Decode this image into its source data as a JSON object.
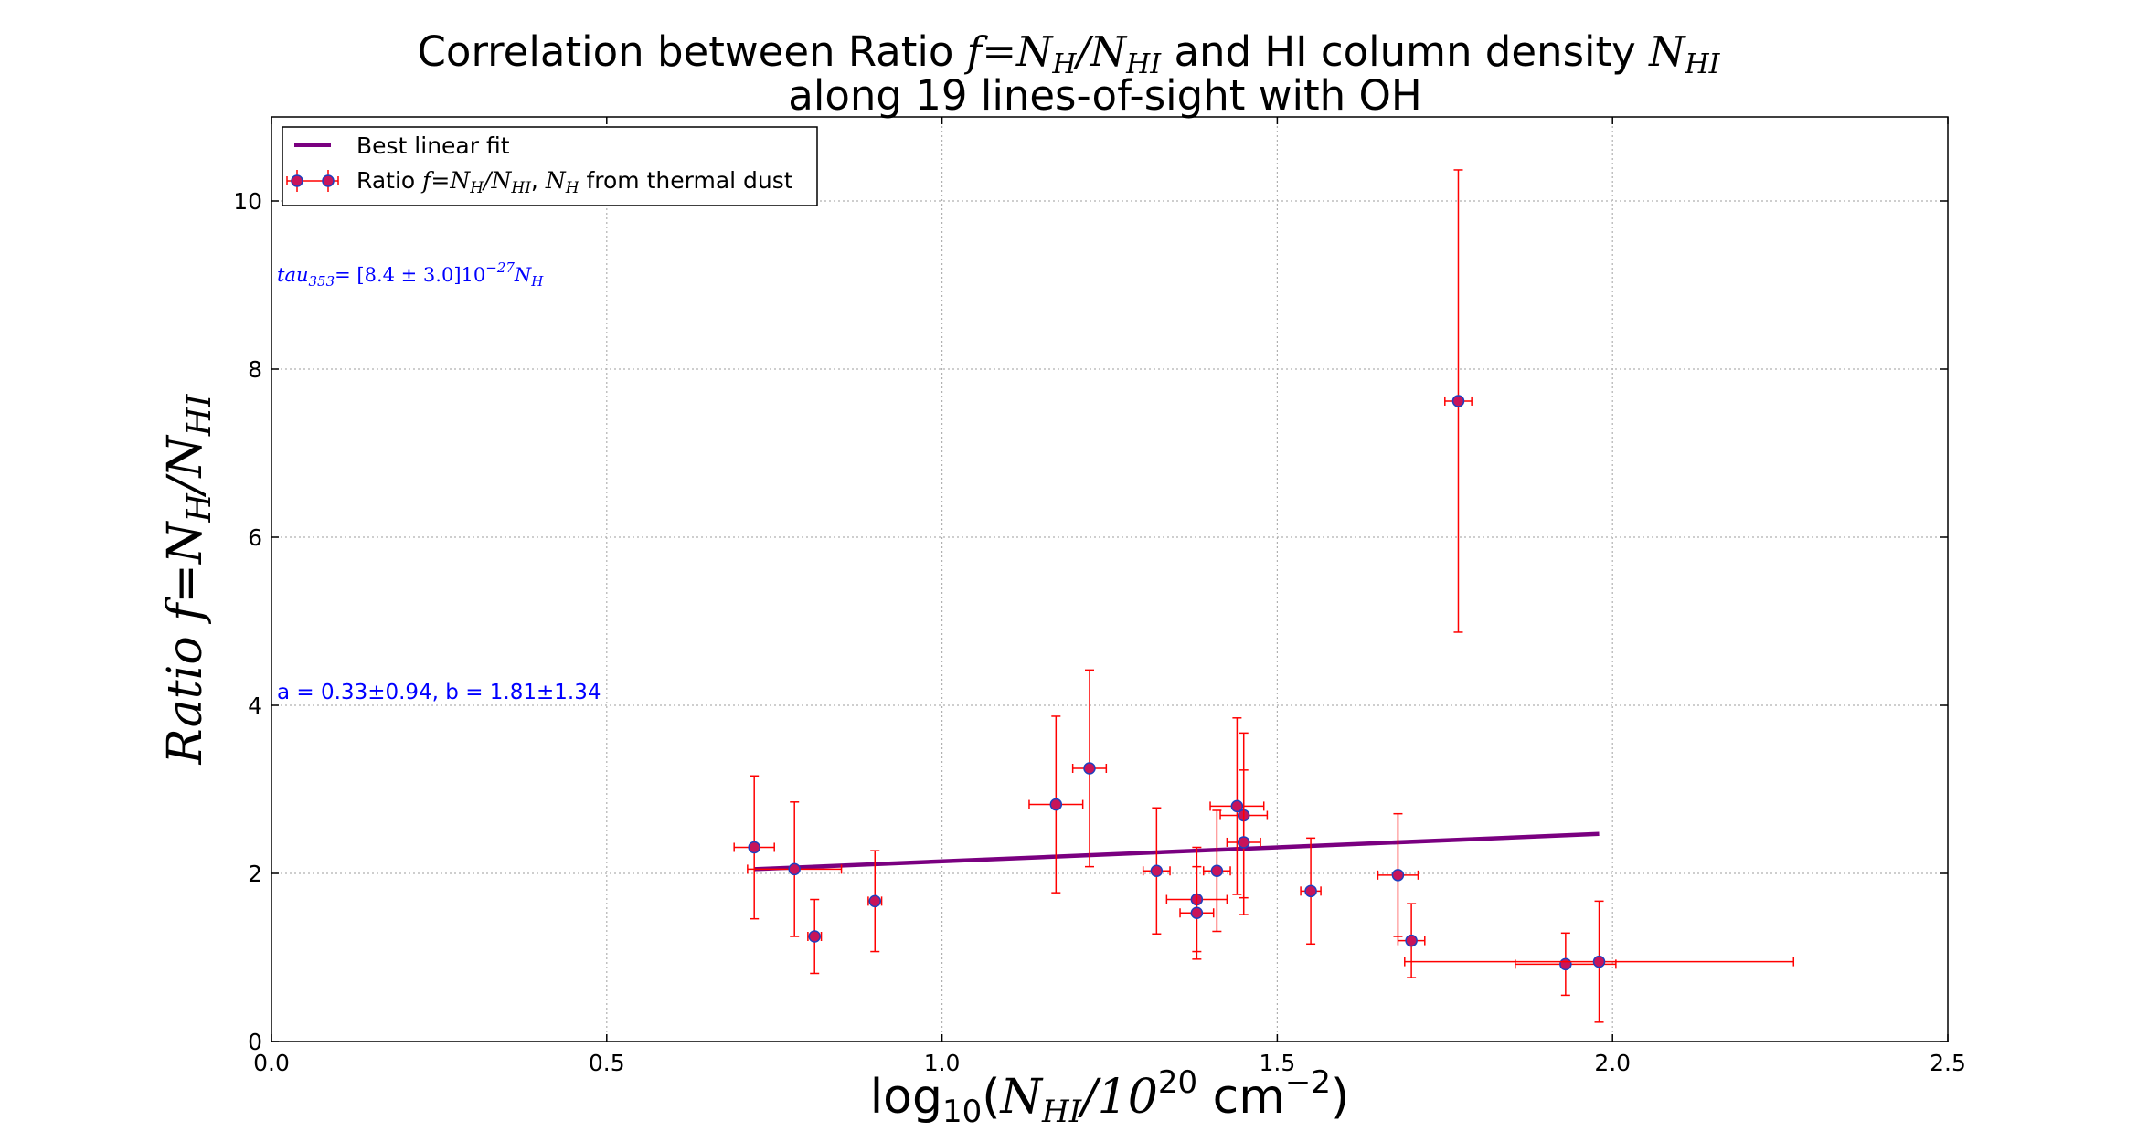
{
  "chart_data": {
    "type": "scatter",
    "title": {
      "line1_prefix": "Correlation between Ratio ",
      "line1_math": "f = NH/NHI",
      "line1_middle": " and HI column density ",
      "line1_math2": "NHI",
      "line2": "along 19 lines-of-sight with OH"
    },
    "xlabel": "log10(NHI/10^20 cm^-2)",
    "ylabel": "Ratio f = NH/NHI",
    "xlim": [
      0.0,
      2.5
    ],
    "ylim": [
      0,
      11
    ],
    "x_ticks": [
      "0.0",
      "0.5",
      "1.0",
      "1.5",
      "2.0",
      "2.5"
    ],
    "x_tick_values": [
      0.0,
      0.5,
      1.0,
      1.5,
      2.0,
      2.5
    ],
    "y_ticks": [
      "0",
      "2",
      "4",
      "6",
      "8",
      "10"
    ],
    "y_tick_values": [
      0,
      2,
      4,
      6,
      8,
      10
    ],
    "grid": true,
    "legend_placement": "top-left",
    "legend": [
      {
        "label": "Best linear fit",
        "kind": "line",
        "color": "#7a0080"
      },
      {
        "label": "Ratio f = NH/NHI, NH from thermal dust",
        "kind": "errorbar",
        "color": "#ff0000",
        "marker_color": "#c8145a"
      }
    ],
    "annotations": [
      {
        "text": "tau353 = [8.4 ± 3.0]10^-27 NH",
        "position": "upper-left",
        "color": "#0000ff"
      },
      {
        "text": "a = 0.33±0.94,  b = 1.81±1.34",
        "position": "mid-left",
        "color": "#0000ff"
      }
    ],
    "fit_line": {
      "x": [
        0.72,
        1.98
      ],
      "y": [
        2.05,
        2.47
      ],
      "color": "#7a0080"
    },
    "series": [
      {
        "name": "Ratio f = NH/NHI, NH from thermal dust",
        "points": [
          {
            "x": 0.72,
            "y": 2.31,
            "xerr": 0.03,
            "yerr": 0.85
          },
          {
            "x": 0.78,
            "y": 2.05,
            "xerr": 0.07,
            "yerr": 0.8
          },
          {
            "x": 0.81,
            "y": 1.25,
            "xerr": 0.01,
            "yerr": 0.44
          },
          {
            "x": 0.9,
            "y": 1.67,
            "xerr": 0.01,
            "yerr": 0.6
          },
          {
            "x": 1.17,
            "y": 2.82,
            "xerr": 0.04,
            "yerr": 1.05
          },
          {
            "x": 1.22,
            "y": 3.25,
            "xerr": 0.025,
            "yerr": 1.17
          },
          {
            "x": 1.32,
            "y": 2.03,
            "xerr": 0.02,
            "yerr": 0.75
          },
          {
            "x": 1.38,
            "y": 1.69,
            "xerr": 0.045,
            "yerr": 0.62
          },
          {
            "x": 1.38,
            "y": 1.53,
            "xerr": 0.025,
            "yerr": 0.55
          },
          {
            "x": 1.41,
            "y": 2.03,
            "xerr": 0.02,
            "yerr": 0.72
          },
          {
            "x": 1.44,
            "y": 2.8,
            "xerr": 0.04,
            "yerr": 1.05
          },
          {
            "x": 1.45,
            "y": 2.69,
            "xerr": 0.035,
            "yerr": 0.98
          },
          {
            "x": 1.45,
            "y": 2.37,
            "xerr": 0.025,
            "yerr": 0.86
          },
          {
            "x": 1.55,
            "y": 1.79,
            "xerr": 0.015,
            "yerr": 0.63
          },
          {
            "x": 1.68,
            "y": 1.98,
            "xerr": 0.03,
            "yerr": 0.73
          },
          {
            "x": 1.7,
            "y": 1.2,
            "xerr": 0.02,
            "yerr": 0.44
          },
          {
            "x": 1.77,
            "y": 7.62,
            "xerr": 0.02,
            "yerr": 2.75
          },
          {
            "x": 1.93,
            "y": 0.92,
            "xerr": 0.075,
            "yerr": 0.37
          },
          {
            "x": 1.98,
            "y": 0.95,
            "xerr": 0.29,
            "yerr": 0.72
          }
        ]
      }
    ],
    "colors": {
      "errorbar": "#ff0000",
      "marker_fill": "#c8145a",
      "marker_edge": "#1f3fbf",
      "fit_line": "#7a0080",
      "annotation": "#0000ff",
      "grid": "#b0b0b0"
    }
  }
}
